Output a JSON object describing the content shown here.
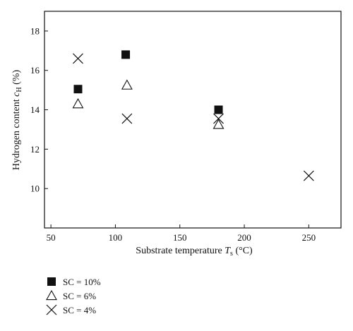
{
  "chart_data": {
    "type": "scatter",
    "xlabel": {
      "main": "Substrate temperature ",
      "var": "T",
      "sub": "s",
      "unit": " (°C)"
    },
    "ylabel": {
      "main": "Hydrogen content ",
      "var": "c",
      "sub": "H",
      "unit": " (%)"
    },
    "xlim": [
      45,
      275
    ],
    "ylim": [
      8,
      19
    ],
    "xticks": [
      50,
      100,
      150,
      200,
      250
    ],
    "yticks": [
      10,
      12,
      14,
      16,
      18
    ],
    "grid": false,
    "legend_position": "below-left",
    "series": [
      {
        "name": "SC = 10%",
        "marker": "filled-square",
        "points": [
          [
            71,
            15.05
          ],
          [
            108,
            16.8
          ],
          [
            180,
            14.0
          ]
        ]
      },
      {
        "name": "SC = 6%",
        "marker": "open-triangle",
        "points": [
          [
            71,
            14.3
          ],
          [
            109,
            15.25
          ],
          [
            180,
            13.25
          ]
        ]
      },
      {
        "name": "SC = 4%",
        "marker": "cross",
        "points": [
          [
            71,
            16.6
          ],
          [
            109,
            13.55
          ],
          [
            180,
            13.55
          ],
          [
            250,
            10.65
          ]
        ]
      }
    ],
    "colors": {
      "marker": "#111111",
      "axis": "#111111"
    }
  }
}
